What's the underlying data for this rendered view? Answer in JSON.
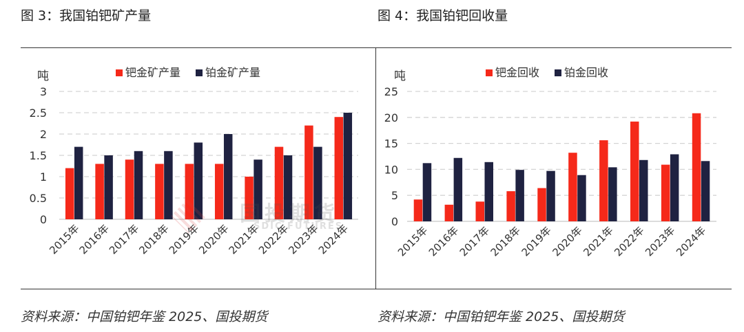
{
  "figures": {
    "left_title": "图 3：我国铂钯矿产量",
    "right_title": "图 4：我国铂钯回收量",
    "left_source": "资料来源：中国铂钯年鉴 2025、国投期货",
    "right_source": "资料来源：中国铂钯年鉴 2025、国投期货"
  },
  "watermark": {
    "cn": "国投期货",
    "en": "SDIC FUTURES"
  },
  "chart_data": [
    {
      "type": "bar",
      "title": "图 3：我国铂钯矿产量",
      "ylabel": "吨",
      "categories": [
        "2015年",
        "2016年",
        "2017年",
        "2018年",
        "2019年",
        "2020年",
        "2021年",
        "2022年",
        "2023年",
        "2024年"
      ],
      "series": [
        {
          "name": "钯金矿产量",
          "color": "#f5291a",
          "values": [
            1.2,
            1.3,
            1.4,
            1.3,
            1.3,
            1.3,
            1.0,
            1.7,
            2.2,
            2.4
          ]
        },
        {
          "name": "铂金矿产量",
          "color": "#1f2241",
          "values": [
            1.7,
            1.5,
            1.6,
            1.6,
            1.8,
            2.0,
            1.4,
            1.5,
            1.7,
            2.5
          ]
        }
      ],
      "ylim": [
        0,
        3
      ],
      "yticks": [
        "0",
        "0.5",
        "1",
        "1.5",
        "2",
        "2.5",
        "3"
      ],
      "grid": true,
      "legend": "top-center"
    },
    {
      "type": "bar",
      "title": "图 4：我国铂钯回收量",
      "ylabel": "吨",
      "categories": [
        "2015年",
        "2016年",
        "2017年",
        "2018年",
        "2019年",
        "2020年",
        "2021年",
        "2022年",
        "2023年",
        "2024年"
      ],
      "series": [
        {
          "name": "钯金回收",
          "color": "#f5291a",
          "values": [
            4.2,
            3.2,
            3.8,
            5.8,
            6.4,
            13.2,
            15.6,
            19.2,
            10.9,
            20.8
          ]
        },
        {
          "name": "铂金回收",
          "color": "#1f2241",
          "values": [
            11.2,
            12.2,
            11.4,
            9.9,
            9.7,
            8.9,
            10.4,
            11.8,
            12.9,
            11.6
          ]
        }
      ],
      "ylim": [
        0,
        25
      ],
      "yticks": [
        "0",
        "5",
        "10",
        "15",
        "20",
        "25"
      ],
      "grid": true,
      "legend": "top-center"
    }
  ]
}
